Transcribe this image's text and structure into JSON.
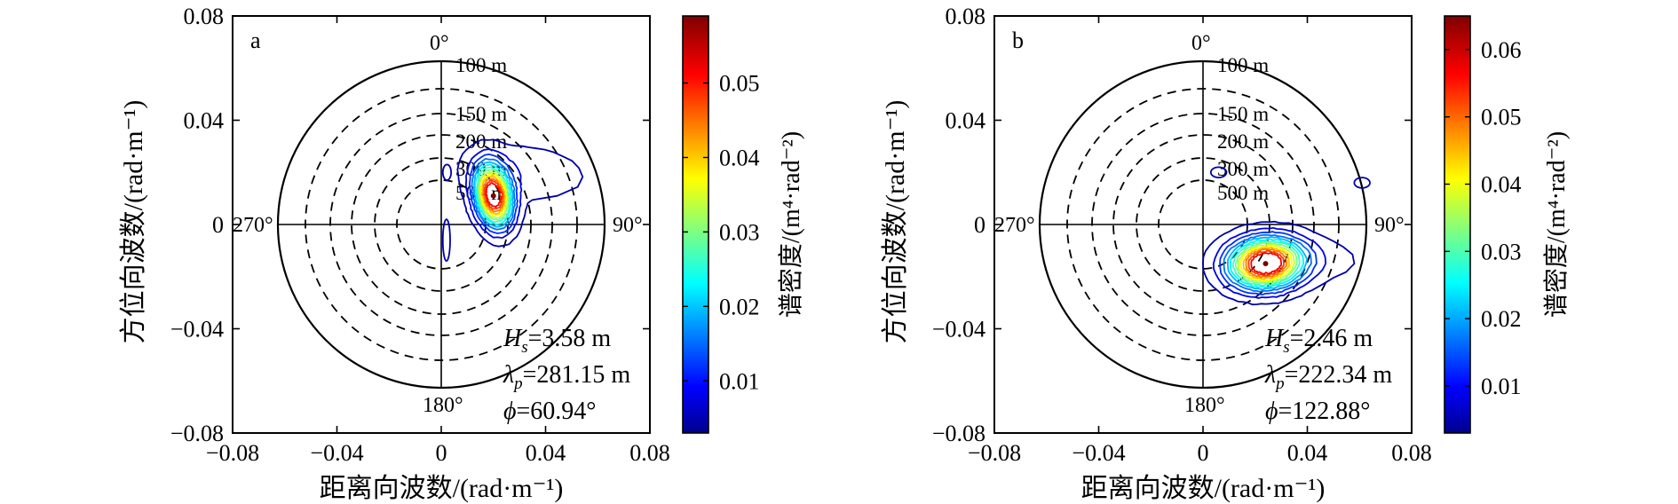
{
  "chart_data": [
    {
      "type": "contour",
      "panel_label": "a",
      "xlabel": "距离向波数/(rad·m⁻¹)",
      "ylabel": "方位向波数/(rad·m⁻¹)",
      "xlim": [
        -0.08,
        0.08
      ],
      "ylim": [
        -0.08,
        0.08
      ],
      "x_ticks": [
        "−0.08",
        "−0.04",
        "0",
        "0.04",
        "0.08"
      ],
      "y_ticks": [
        "0.08",
        "0.04",
        "0",
        "−0.04",
        "−0.08"
      ],
      "directions": [
        "0°",
        "90°",
        "180°",
        "270°"
      ],
      "wavelength_rings": [
        "100 m",
        "150 m",
        "200 m",
        "300 m",
        "500 m"
      ],
      "annotations": {
        "hs": "=3.58 m",
        "lp": "=281.15 m",
        "phi": "=60.94°"
      },
      "peak": {
        "kx": 0.02,
        "ky": 0.011
      },
      "colorbar": {
        "label": "谱密度/(m⁴·rad⁻²)",
        "ticks": [
          "0.05",
          "0.04",
          "0.03",
          "0.02",
          "0.01"
        ],
        "range": [
          0.003,
          0.059
        ]
      }
    },
    {
      "type": "contour",
      "panel_label": "b",
      "xlabel": "距离向波数/(rad·m⁻¹)",
      "ylabel": "方位向波数/(rad·m⁻¹)",
      "xlim": [
        -0.08,
        0.08
      ],
      "ylim": [
        -0.08,
        0.08
      ],
      "x_ticks": [
        "−0.08",
        "−0.04",
        "0",
        "0.04",
        "0.08"
      ],
      "y_ticks": [
        "0.08",
        "0.04",
        "0",
        "−0.04",
        "−0.08"
      ],
      "directions": [
        "0°",
        "90°",
        "180°",
        "270°"
      ],
      "wavelength_rings": [
        "100 m",
        "150 m",
        "200 m",
        "300 m",
        "500 m"
      ],
      "annotations": {
        "hs": "=2.46 m",
        "lp": "=222.34 m",
        "phi": "=122.88°"
      },
      "peak": {
        "kx": 0.024,
        "ky": -0.015
      },
      "colorbar": {
        "label": "谱密度/(m⁴·rad⁻²)",
        "ticks": [
          "0.06",
          "0.05",
          "0.04",
          "0.03",
          "0.02",
          "0.01"
        ],
        "range": [
          0.003,
          0.065
        ]
      }
    }
  ]
}
